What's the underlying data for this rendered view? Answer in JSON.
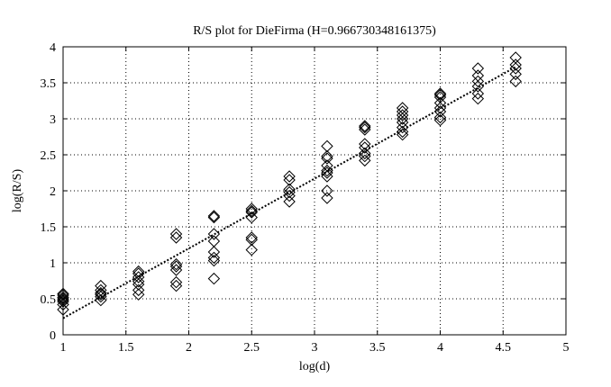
{
  "chart_data": {
    "type": "scatter",
    "title": "R/S plot for DieFirma (H=0.966730348161375)",
    "xlabel": "log(d)",
    "ylabel": "log(R/S)",
    "xlim": [
      1,
      5
    ],
    "ylim": [
      0,
      4
    ],
    "grid": true,
    "xticks": [
      "1",
      "1.5",
      "2",
      "2.5",
      "3",
      "3.5",
      "4",
      "4.5",
      "5"
    ],
    "yticks": [
      "0",
      "0.5",
      "1",
      "1.5",
      "2",
      "2.5",
      "3",
      "3.5",
      "4"
    ],
    "marker": "diamond",
    "series": [
      {
        "style": "diamond-markers",
        "x": [
          1,
          1,
          1,
          1,
          1,
          1,
          1,
          1,
          1.3,
          1.3,
          1.3,
          1.3,
          1.3,
          1.3,
          1.6,
          1.6,
          1.6,
          1.6,
          1.6,
          1.6,
          1.6,
          1.9,
          1.9,
          1.9,
          1.9,
          1.9,
          1.9,
          1.9,
          2.2,
          2.2,
          2.2,
          2.2,
          2.2,
          2.2,
          2.2,
          2.2,
          2.5,
          2.5,
          2.5,
          2.5,
          2.5,
          2.5,
          2.5,
          2.8,
          2.8,
          2.8,
          2.8,
          2.8,
          2.8,
          3.1,
          3.1,
          3.1,
          3.1,
          3.1,
          3.1,
          3.1,
          3.1,
          3.1,
          3.4,
          3.4,
          3.4,
          3.4,
          3.4,
          3.4,
          3.4,
          3.4,
          3.7,
          3.7,
          3.7,
          3.7,
          3.7,
          3.7,
          3.7,
          3.7,
          4,
          4,
          4,
          4,
          4,
          4,
          4,
          4,
          4.3,
          4.3,
          4.3,
          4.3,
          4.3,
          4.3,
          4.6,
          4.6,
          4.6,
          4.6,
          4.6
        ],
        "y": [
          0.35,
          0.42,
          0.46,
          0.48,
          0.5,
          0.52,
          0.55,
          0.57,
          0.48,
          0.53,
          0.56,
          0.58,
          0.62,
          0.68,
          0.56,
          0.62,
          0.7,
          0.74,
          0.8,
          0.85,
          0.88,
          0.68,
          0.73,
          0.9,
          0.95,
          0.98,
          1.35,
          1.4,
          0.78,
          1.03,
          1.07,
          1.15,
          1.3,
          1.4,
          1.63,
          1.65,
          1.18,
          1.32,
          1.35,
          1.63,
          1.7,
          1.72,
          1.75,
          1.85,
          1.93,
          1.98,
          2.02,
          2.15,
          2.2,
          1.9,
          2.0,
          2.2,
          2.28,
          2.35,
          2.45,
          2.48,
          2.62,
          2.25,
          2.42,
          2.48,
          2.52,
          2.6,
          2.65,
          2.85,
          2.88,
          2.9,
          2.78,
          2.82,
          2.88,
          2.95,
          3.0,
          3.05,
          3.1,
          3.15,
          2.98,
          3.02,
          3.1,
          3.15,
          3.22,
          3.3,
          3.33,
          3.35,
          3.28,
          3.35,
          3.45,
          3.52,
          3.6,
          3.7,
          3.52,
          3.62,
          3.7,
          3.75,
          3.85
        ]
      },
      {
        "style": "dotted-fit-line",
        "x": [
          1,
          4.6
        ],
        "y": [
          0.23,
          3.72
        ]
      }
    ]
  }
}
